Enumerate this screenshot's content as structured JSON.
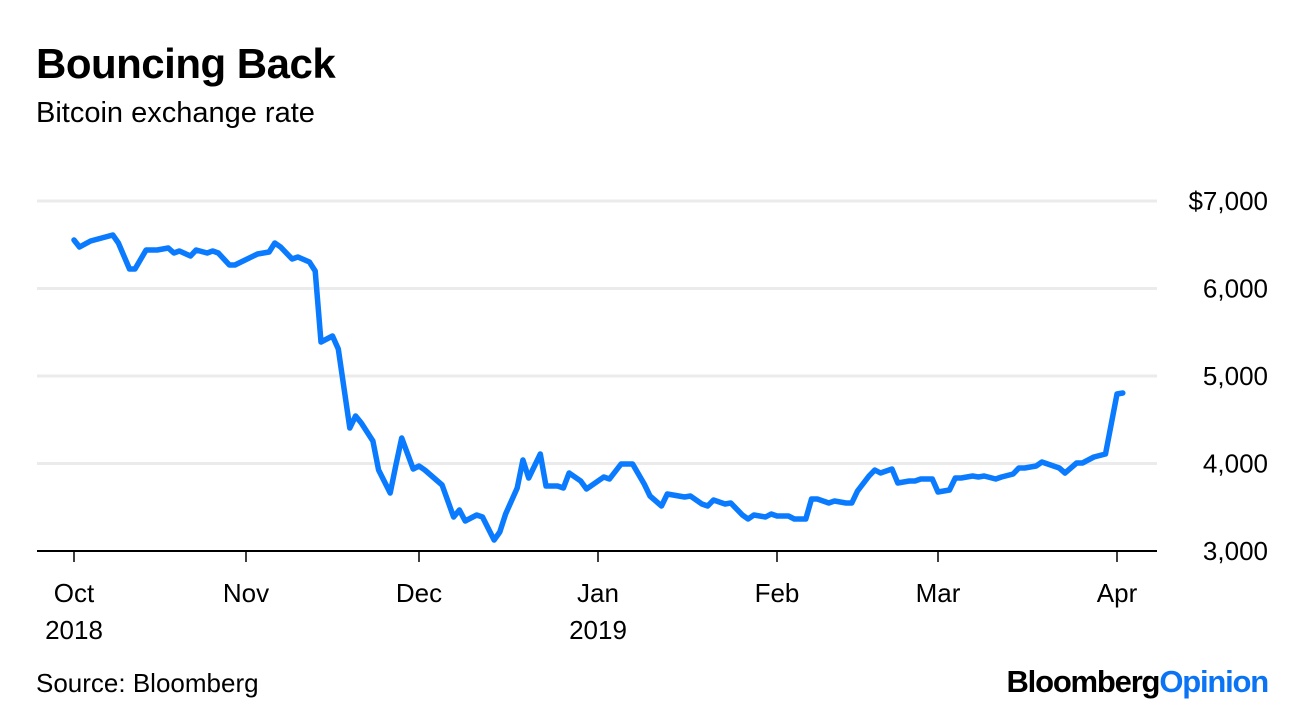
{
  "title": "Bouncing Back",
  "subtitle": "Bitcoin exchange rate",
  "source": "Source: Bloomberg",
  "logo": {
    "part1": "Bloomberg",
    "part2": "Opinion"
  },
  "colors": {
    "line": "#0a7bff",
    "grid": "#ebebeb",
    "axis": "#000000",
    "logo_accent": "#0a74f5"
  },
  "chart_data": {
    "type": "line",
    "title": "Bouncing Back",
    "subtitle": "Bitcoin exchange rate",
    "xlabel": "",
    "ylabel": "",
    "ylim": [
      3000,
      7000
    ],
    "y_ticks": [
      {
        "value": 7000,
        "label": "$7,000"
      },
      {
        "value": 6000,
        "label": "6,000"
      },
      {
        "value": 5000,
        "label": "5,000"
      },
      {
        "value": 4000,
        "label": "4,000"
      },
      {
        "value": 3000,
        "label": "3,000"
      }
    ],
    "x_ticks": [
      {
        "date": "2018-10-01",
        "label": "Oct",
        "year": "2018"
      },
      {
        "date": "2018-11-01",
        "label": "Nov",
        "year": ""
      },
      {
        "date": "2018-12-01",
        "label": "Dec",
        "year": ""
      },
      {
        "date": "2019-01-01",
        "label": "Jan",
        "year": "2019"
      },
      {
        "date": "2019-02-01",
        "label": "Feb",
        "year": ""
      },
      {
        "date": "2019-03-01",
        "label": "Mar",
        "year": ""
      },
      {
        "date": "2019-04-01",
        "label": "Apr",
        "year": ""
      }
    ],
    "grid": true,
    "y_axis_position": "right",
    "series": [
      {
        "points": [
          [
            "2018-10-01",
            6554
          ],
          [
            "2018-10-02",
            6474
          ],
          [
            "2018-10-04",
            6543
          ],
          [
            "2018-10-08",
            6611
          ],
          [
            "2018-10-09",
            6520
          ],
          [
            "2018-10-11",
            6223
          ],
          [
            "2018-10-12",
            6223
          ],
          [
            "2018-10-14",
            6440
          ],
          [
            "2018-10-16",
            6440
          ],
          [
            "2018-10-18",
            6463
          ],
          [
            "2018-10-19",
            6406
          ],
          [
            "2018-10-20",
            6429
          ],
          [
            "2018-10-22",
            6371
          ],
          [
            "2018-10-23",
            6440
          ],
          [
            "2018-10-25",
            6406
          ],
          [
            "2018-10-26",
            6429
          ],
          [
            "2018-10-27",
            6406
          ],
          [
            "2018-10-29",
            6269
          ],
          [
            "2018-10-30",
            6269
          ],
          [
            "2018-11-03",
            6394
          ],
          [
            "2018-11-05",
            6417
          ],
          [
            "2018-11-06",
            6520
          ],
          [
            "2018-11-07",
            6474
          ],
          [
            "2018-11-09",
            6337
          ],
          [
            "2018-11-10",
            6360
          ],
          [
            "2018-11-12",
            6303
          ],
          [
            "2018-11-13",
            6200
          ],
          [
            "2018-11-14",
            5389
          ],
          [
            "2018-11-16",
            5457
          ],
          [
            "2018-11-17",
            5309
          ],
          [
            "2018-11-19",
            4406
          ],
          [
            "2018-11-20",
            4543
          ],
          [
            "2018-11-21",
            4463
          ],
          [
            "2018-11-23",
            4257
          ],
          [
            "2018-11-24",
            3926
          ],
          [
            "2018-11-26",
            3663
          ],
          [
            "2018-11-27",
            3983
          ],
          [
            "2018-11-28",
            4291
          ],
          [
            "2018-11-30",
            3937
          ],
          [
            "2018-12-01",
            3971
          ],
          [
            "2018-12-02",
            3926
          ],
          [
            "2018-12-05",
            3754
          ],
          [
            "2018-12-07",
            3389
          ],
          [
            "2018-12-08",
            3469
          ],
          [
            "2018-12-09",
            3343
          ],
          [
            "2018-12-11",
            3411
          ],
          [
            "2018-12-12",
            3389
          ],
          [
            "2018-12-14",
            3126
          ],
          [
            "2018-12-15",
            3217
          ],
          [
            "2018-12-16",
            3423
          ],
          [
            "2018-12-18",
            3720
          ],
          [
            "2018-12-19",
            4040
          ],
          [
            "2018-12-20",
            3834
          ],
          [
            "2018-12-22",
            4109
          ],
          [
            "2018-12-23",
            3743
          ],
          [
            "2018-12-25",
            3743
          ],
          [
            "2018-12-26",
            3720
          ],
          [
            "2018-12-27",
            3891
          ],
          [
            "2018-12-29",
            3800
          ],
          [
            "2018-12-30",
            3709
          ],
          [
            "2019-01-01",
            3800
          ],
          [
            "2019-01-02",
            3846
          ],
          [
            "2019-01-03",
            3823
          ],
          [
            "2019-01-05",
            3994
          ],
          [
            "2019-01-07",
            3994
          ],
          [
            "2019-01-09",
            3766
          ],
          [
            "2019-01-10",
            3629
          ],
          [
            "2019-01-12",
            3514
          ],
          [
            "2019-01-13",
            3651
          ],
          [
            "2019-01-16",
            3617
          ],
          [
            "2019-01-17",
            3629
          ],
          [
            "2019-01-19",
            3537
          ],
          [
            "2019-01-20",
            3514
          ],
          [
            "2019-01-21",
            3583
          ],
          [
            "2019-01-23",
            3537
          ],
          [
            "2019-01-24",
            3549
          ],
          [
            "2019-01-26",
            3411
          ],
          [
            "2019-01-27",
            3366
          ],
          [
            "2019-01-28",
            3411
          ],
          [
            "2019-01-30",
            3389
          ],
          [
            "2019-01-31",
            3423
          ],
          [
            "2019-02-01",
            3400
          ],
          [
            "2019-02-03",
            3400
          ],
          [
            "2019-02-04",
            3366
          ],
          [
            "2019-02-06",
            3366
          ],
          [
            "2019-02-07",
            3594
          ],
          [
            "2019-02-08",
            3594
          ],
          [
            "2019-02-10",
            3549
          ],
          [
            "2019-02-11",
            3571
          ],
          [
            "2019-02-13",
            3549
          ],
          [
            "2019-02-14",
            3549
          ],
          [
            "2019-02-15",
            3686
          ],
          [
            "2019-02-17",
            3857
          ],
          [
            "2019-02-18",
            3926
          ],
          [
            "2019-02-19",
            3891
          ],
          [
            "2019-02-21",
            3937
          ],
          [
            "2019-02-22",
            3777
          ],
          [
            "2019-02-24",
            3800
          ],
          [
            "2019-02-25",
            3800
          ],
          [
            "2019-02-26",
            3823
          ],
          [
            "2019-02-28",
            3823
          ],
          [
            "2019-03-01",
            3674
          ],
          [
            "2019-03-03",
            3697
          ],
          [
            "2019-03-04",
            3834
          ],
          [
            "2019-03-05",
            3834
          ],
          [
            "2019-03-07",
            3857
          ],
          [
            "2019-03-08",
            3846
          ],
          [
            "2019-03-09",
            3857
          ],
          [
            "2019-03-11",
            3823
          ],
          [
            "2019-03-12",
            3846
          ],
          [
            "2019-03-14",
            3880
          ],
          [
            "2019-03-15",
            3949
          ],
          [
            "2019-03-16",
            3949
          ],
          [
            "2019-03-18",
            3971
          ],
          [
            "2019-03-19",
            4017
          ],
          [
            "2019-03-21",
            3971
          ],
          [
            "2019-03-22",
            3949
          ],
          [
            "2019-03-23",
            3891
          ],
          [
            "2019-03-25",
            4006
          ],
          [
            "2019-03-26",
            4006
          ],
          [
            "2019-03-28",
            4074
          ],
          [
            "2019-03-30",
            4109
          ],
          [
            "2019-04-01",
            4794
          ],
          [
            "2019-04-02",
            4806
          ]
        ]
      }
    ]
  }
}
